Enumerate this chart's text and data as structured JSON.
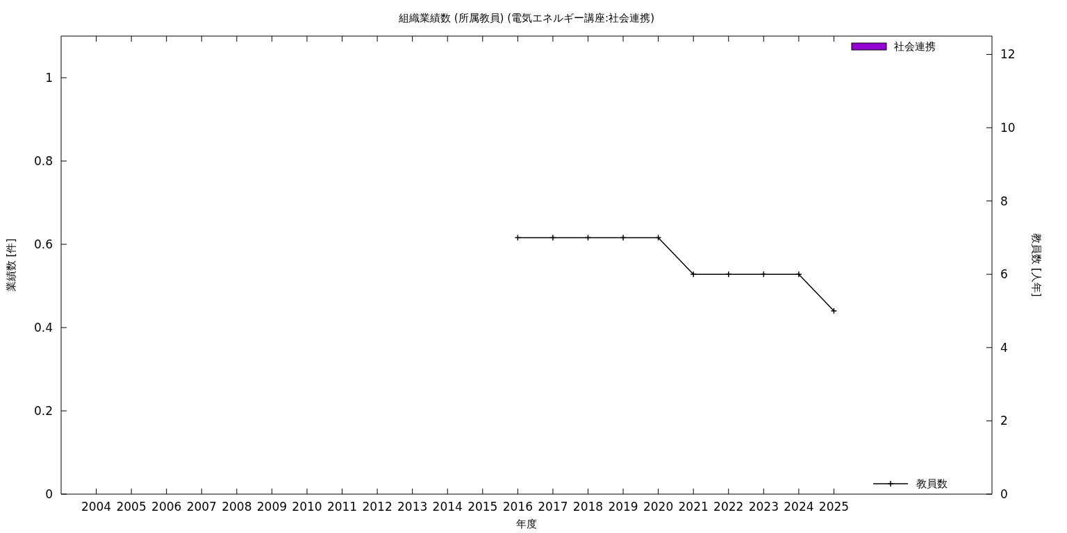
{
  "chart_data": {
    "type": "bar",
    "title": "組織業績数 (所属教員) (電気エネルギー講座:社会連携)",
    "xlabel": "年度",
    "ylabel": "業績数 [件]",
    "y2label": "教員数 [人年]",
    "x": [
      2004,
      2005,
      2006,
      2007,
      2008,
      2009,
      2010,
      2011,
      2012,
      2013,
      2014,
      2015,
      2016,
      2017,
      2018,
      2019,
      2020,
      2021,
      2022,
      2023,
      2024,
      2025
    ],
    "xlim": [
      2003,
      2029.5
    ],
    "xticks": [
      2004,
      2005,
      2006,
      2007,
      2008,
      2009,
      2010,
      2011,
      2012,
      2013,
      2014,
      2015,
      2016,
      2017,
      2018,
      2019,
      2020,
      2021,
      2022,
      2023,
      2024,
      2025
    ],
    "series": [
      {
        "name": "社会連携",
        "color": "#9400d3",
        "values": [
          0,
          0,
          0,
          0,
          0,
          0,
          0,
          0,
          0,
          0,
          0,
          0,
          0,
          0,
          0,
          0,
          0,
          0,
          0,
          0,
          0,
          0
        ]
      },
      {
        "name": "教員数",
        "type": "line",
        "axis": "y2",
        "color": "#000000",
        "marker": "cross",
        "values": [
          null,
          null,
          null,
          null,
          null,
          null,
          null,
          null,
          null,
          null,
          null,
          null,
          7,
          7,
          7,
          7,
          7,
          6,
          6,
          6,
          6,
          5
        ]
      }
    ],
    "ylim": [
      0,
      1.1
    ],
    "yticks": [
      0,
      0.2,
      0.4,
      0.6,
      0.8,
      1
    ],
    "y2lim": [
      0,
      12.5
    ],
    "y2ticks": [
      0,
      2,
      4,
      6,
      8,
      10,
      12
    ],
    "grid": false,
    "legend": "top right"
  }
}
